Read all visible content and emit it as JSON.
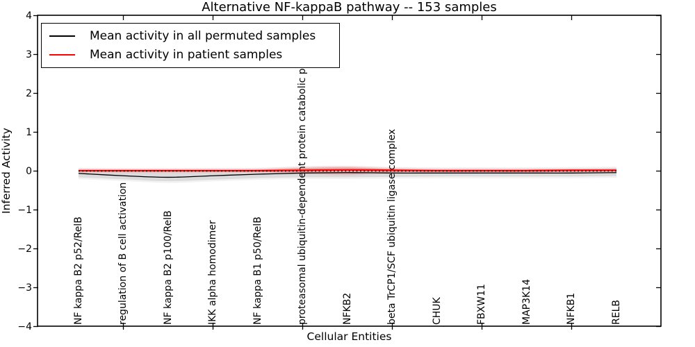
{
  "figure": {
    "title": "Alternative NF-kappaB pathway -- 153 samples",
    "xlabel": "Cellular Entities",
    "ylabel": "Inferred Activity",
    "background": "#ffffff"
  },
  "legend": {
    "position": "upper left",
    "entries": [
      {
        "label": "Mean activity in all permuted samples",
        "color": "#000000"
      },
      {
        "label": "Mean activity in patient samples",
        "color": "#ff0000"
      }
    ]
  },
  "chart_data": {
    "type": "line",
    "title": "Alternative NF-kappaB pathway -- 153 samples",
    "xlabel": "Cellular Entities",
    "ylabel": "Inferred Activity",
    "n_samples_in_title": 153,
    "ylim": [
      -4,
      4
    ],
    "yticks": [
      4,
      3,
      2,
      1,
      0,
      -1,
      -2,
      -3,
      -4
    ],
    "ytick_labels": [
      "4",
      "3",
      "2",
      "1",
      "0",
      "−1",
      "−2",
      "−3",
      "−4"
    ],
    "grid": false,
    "legend_position": "upper left",
    "categories": [
      "NF kappa B2 p52/RelB",
      "regulation of B cell activation",
      "NF kappa B2 p100/RelB",
      "IKK alpha homodimer",
      "NF kappa B1 p50/RelB",
      "proteasomal ubiquitin-dependent protein catabolic pr",
      "NFKB2",
      "beta TrCP1/SCF ubiquitin ligase complex",
      "CHUK",
      "FBXW11",
      "MAP3K14",
      "NFKB1",
      "RELB"
    ],
    "x_tick_indices": [
      1,
      3,
      5,
      7,
      9,
      11
    ],
    "zero_line": {
      "y": 0,
      "style": "dotted",
      "color": "#000000"
    },
    "series": [
      {
        "name": "Mean activity in all permuted samples",
        "color": "#000000",
        "line_width": 1.3,
        "values": [
          -0.06,
          -0.12,
          -0.16,
          -0.12,
          -0.08,
          -0.05,
          -0.04,
          -0.05,
          -0.05,
          -0.05,
          -0.05,
          -0.05,
          -0.04
        ],
        "band_upper": [
          0.03,
          0.02,
          0.02,
          0.03,
          0.04,
          0.08,
          0.09,
          0.06,
          0.05,
          0.05,
          0.05,
          0.06,
          0.07
        ],
        "band_lower": [
          -0.16,
          -0.21,
          -0.26,
          -0.22,
          -0.18,
          -0.16,
          -0.16,
          -0.15,
          -0.14,
          -0.14,
          -0.14,
          -0.14,
          -0.13
        ],
        "band_color": "#000000",
        "band_alpha": 0.09,
        "outer_band_alpha": 0.05,
        "outer_band_extra": 0.045
      },
      {
        "name": "Mean activity in patient samples",
        "color": "#ff0000",
        "line_width": 2.2,
        "values": [
          0.01,
          0.01,
          0.01,
          0.01,
          0.01,
          0.02,
          0.03,
          0.02,
          0.01,
          0.01,
          0.01,
          0.02,
          0.02
        ],
        "band_upper": [
          0.04,
          0.04,
          0.04,
          0.04,
          0.04,
          0.08,
          0.1,
          0.06,
          0.04,
          0.04,
          0.04,
          0.04,
          0.05
        ],
        "band_lower": [
          -0.02,
          -0.02,
          -0.02,
          -0.02,
          -0.02,
          -0.05,
          -0.08,
          -0.03,
          -0.02,
          -0.02,
          -0.02,
          -0.02,
          -0.01
        ],
        "band_color": "#ff0000",
        "band_alpha": 0.18,
        "outer_band_alpha": 0.07,
        "outer_band_extra": 0.035
      }
    ]
  }
}
